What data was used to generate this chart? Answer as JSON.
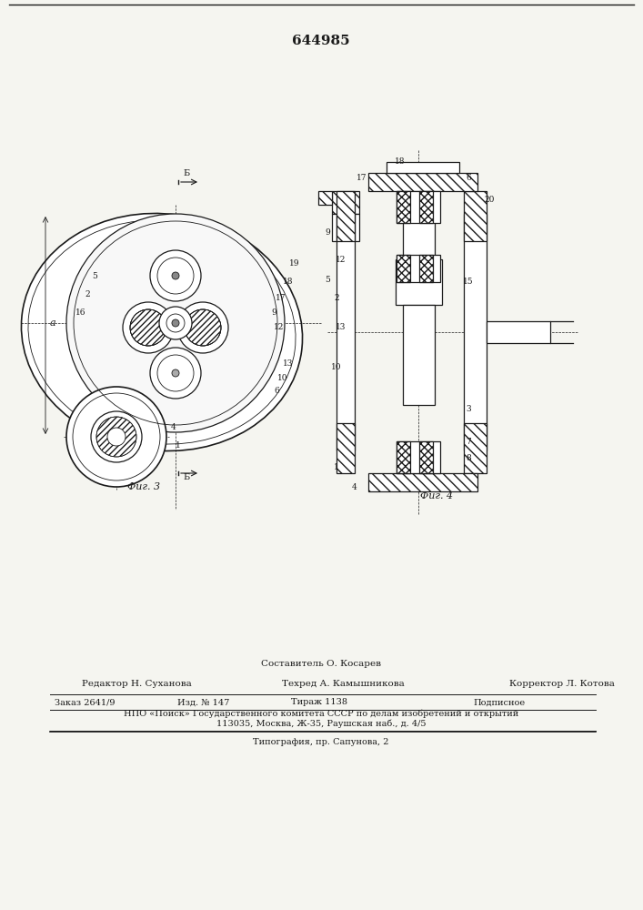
{
  "patent_number": "644985",
  "fig3_label": "Фиг. 3",
  "fig4_label": "Фиг. 4",
  "section_label": "Б-Б",
  "bottom_text_line1": "Составитель О. Косарев",
  "bottom_text_line2": "Редактор Н. Суханова",
  "bottom_text_line3": "Техред А. Камышникова",
  "bottom_text_line4": "Корректор Л. Котова",
  "bottom_text_line5": "Заказ 2641/9",
  "bottom_text_line6": "Изд. № 147",
  "bottom_text_line7": "Тираж 1138",
  "bottom_text_line8": "Подписное",
  "bottom_text_line9": "НПО «Поиск» Государственного комитета СССР по делам изобретений и открытий",
  "bottom_text_line10": "113035, Москва, Ж-35, Раушская наб., д. 4/5",
  "bottom_text_line11": "Типография, пр. Сапунова, 2",
  "bg_color": "#f5f5f0",
  "line_color": "#1a1a1a",
  "hatch_color": "#333333"
}
